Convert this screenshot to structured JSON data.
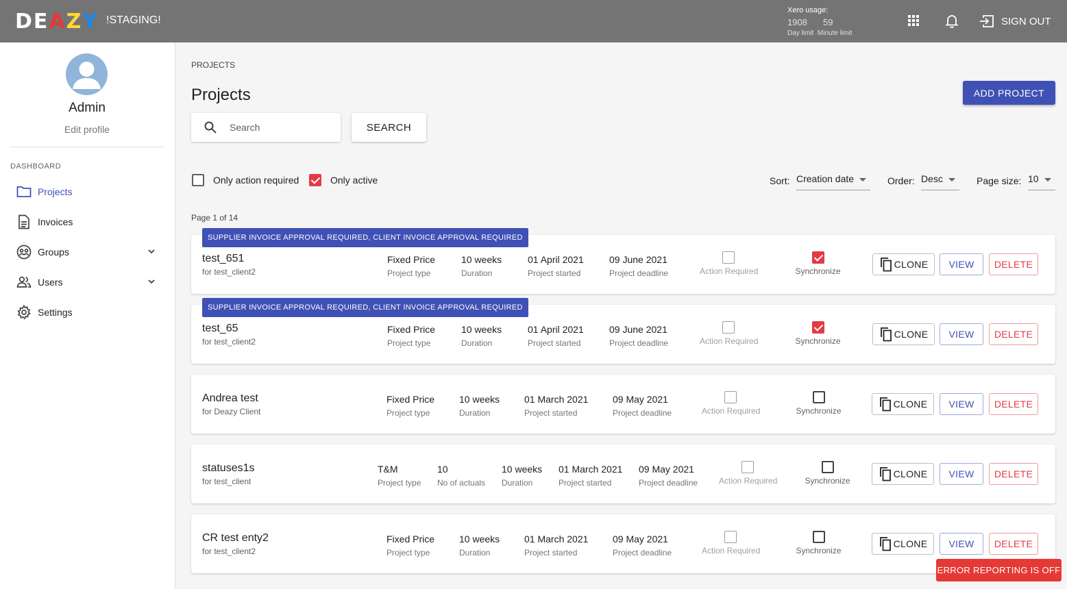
{
  "header": {
    "logo_text": "DEAZY",
    "env_label": "!STAGING!",
    "xero": {
      "title": "Xero usage:",
      "day_value": "1908",
      "minute_value": "59",
      "day_label": "Day limit",
      "minute_label": "Minute limit"
    },
    "sign_out_label": "SIGN OUT"
  },
  "sidebar": {
    "user_name": "Admin",
    "edit_profile": "Edit profile",
    "section": "DASHBOARD",
    "items": [
      {
        "label": "Projects"
      },
      {
        "label": "Invoices"
      },
      {
        "label": "Groups"
      },
      {
        "label": "Users"
      },
      {
        "label": "Settings"
      }
    ]
  },
  "main": {
    "breadcrumb": "PROJECTS",
    "title": "Projects",
    "add_button": "ADD PROJECT",
    "search_placeholder": "Search",
    "search_button": "SEARCH",
    "filter_action": "Only action required",
    "filter_active": "Only active",
    "sort_label": "Sort:",
    "sort_value": "Creation date",
    "order_label": "Order:",
    "order_value": "Desc",
    "page_size_label": "Page size:",
    "page_size_value": "10",
    "page_info": "Page 1 of 14"
  },
  "projects": [
    {
      "badge": "SUPPLIER INVOICE APPROVAL REQUIRED, CLIENT INVOICE APPROVAL REQUIRED",
      "name": "test_651",
      "client": "for test_client2",
      "type": "Fixed Price",
      "type_label": "Project type",
      "duration": "10 weeks",
      "duration_label": "Duration",
      "started": "01 April 2021",
      "started_label": "Project started",
      "deadline": "09 June 2021",
      "deadline_label": "Project deadline",
      "action_label": "Action Required",
      "sync_label": "Synchronize",
      "action_required": false,
      "synchronize": true,
      "clone": "CLONE",
      "view": "VIEW",
      "delete": "DELETE"
    },
    {
      "badge": "SUPPLIER INVOICE APPROVAL REQUIRED, CLIENT INVOICE APPROVAL REQUIRED",
      "name": "test_65",
      "client": "for test_client2",
      "type": "Fixed Price",
      "type_label": "Project type",
      "duration": "10 weeks",
      "duration_label": "Duration",
      "started": "01 April 2021",
      "started_label": "Project started",
      "deadline": "09 June 2021",
      "deadline_label": "Project deadline",
      "action_label": "Action Required",
      "sync_label": "Synchronize",
      "action_required": false,
      "synchronize": true,
      "clone": "CLONE",
      "view": "VIEW",
      "delete": "DELETE"
    },
    {
      "name": "Andrea test",
      "client": "for Deazy Client",
      "type": "Fixed Price",
      "type_label": "Project type",
      "duration": "10 weeks",
      "duration_label": "Duration",
      "started": "01 March 2021",
      "started_label": "Project started",
      "deadline": "09 May 2021",
      "deadline_label": "Project deadline",
      "action_label": "Action Required",
      "sync_label": "Synchronize",
      "action_required": false,
      "synchronize": false,
      "clone": "CLONE",
      "view": "VIEW",
      "delete": "DELETE"
    },
    {
      "name": "statuses1s",
      "client": "for test_client",
      "type": "T&M",
      "type_label": "Project type",
      "actuals": "10",
      "actuals_label": "No of actuals",
      "duration": "10 weeks",
      "duration_label": "Duration",
      "started": "01 March 2021",
      "started_label": "Project started",
      "deadline": "09 May 2021",
      "deadline_label": "Project deadline",
      "action_label": "Action Required",
      "sync_label": "Synchronize",
      "action_required": false,
      "synchronize": false,
      "clone": "CLONE",
      "view": "VIEW",
      "delete": "DELETE"
    },
    {
      "name": "CR test enty2",
      "client": "for test_client2",
      "type": "Fixed Price",
      "type_label": "Project type",
      "duration": "10 weeks",
      "duration_label": "Duration",
      "started": "01 March 2021",
      "started_label": "Project started",
      "deadline": "09 May 2021",
      "deadline_label": "Project deadline",
      "action_label": "Action Required",
      "sync_label": "Synchronize",
      "action_required": false,
      "synchronize": false,
      "clone": "CLONE",
      "view": "VIEW",
      "delete": "DELETE"
    }
  ],
  "error_reporting": "ERROR REPORTING IS OFF",
  "colors": {
    "primary": "#3f51b5",
    "danger": "#e53945",
    "header_bg": "#747474"
  }
}
